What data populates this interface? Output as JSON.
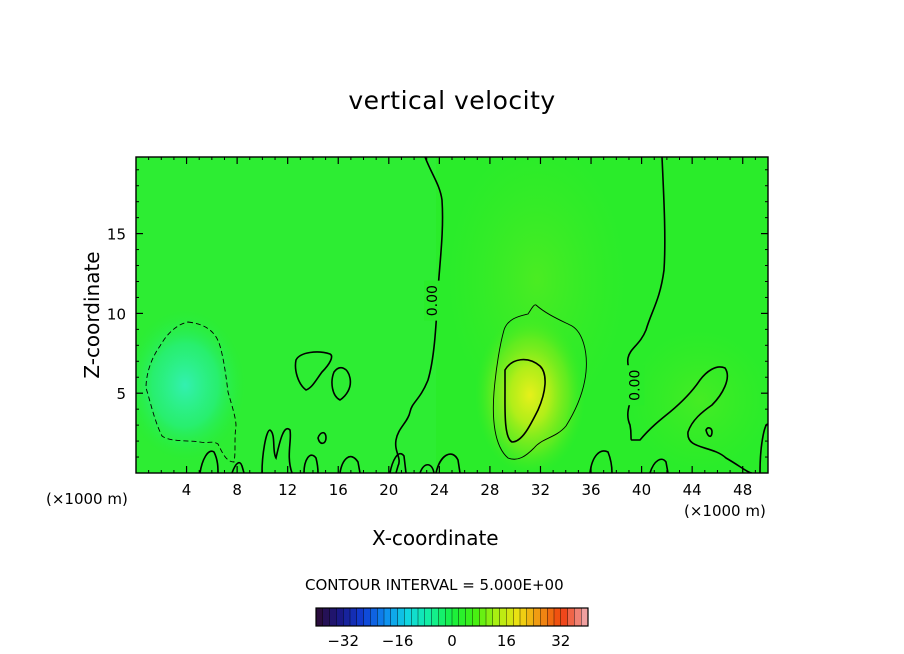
{
  "chart_data": {
    "type": "heatmap",
    "title": "vertical velocity",
    "xlabel": "X-coordinate",
    "ylabel": "Z-coordinate",
    "x_unit": "(×1000 m)",
    "xlim": [
      0,
      50
    ],
    "ylim": [
      0,
      19.8
    ],
    "xticks": [
      4,
      8,
      12,
      16,
      20,
      24,
      28,
      32,
      36,
      40,
      44,
      48
    ],
    "yticks": [
      5,
      10,
      15
    ],
    "contour_interval_text": "CONTOUR INTERVAL = 5.000E+00",
    "contour_labels": [
      {
        "text": "0.00",
        "x": 23.5,
        "z": 10.8
      },
      {
        "text": "0.00",
        "x": 39.5,
        "z": 5.5
      }
    ],
    "colorbar": {
      "range": [
        -40,
        40
      ],
      "ticks": [
        -32,
        -16,
        0,
        16,
        32
      ],
      "colors": [
        "#2a0d3e",
        "#191a8c",
        "#0f3fd6",
        "#0e8df0",
        "#10d6e0",
        "#12f0a0",
        "#17f040",
        "#40f012",
        "#a8f012",
        "#f0e012",
        "#f09012",
        "#f04010",
        "#f0a0a0"
      ]
    },
    "features": [
      {
        "kind": "downdraft-min",
        "x": 4.5,
        "z": 5.0,
        "value": -5
      },
      {
        "kind": "updraft-max",
        "x": 31.0,
        "z": 5.0,
        "value": 10
      }
    ]
  }
}
